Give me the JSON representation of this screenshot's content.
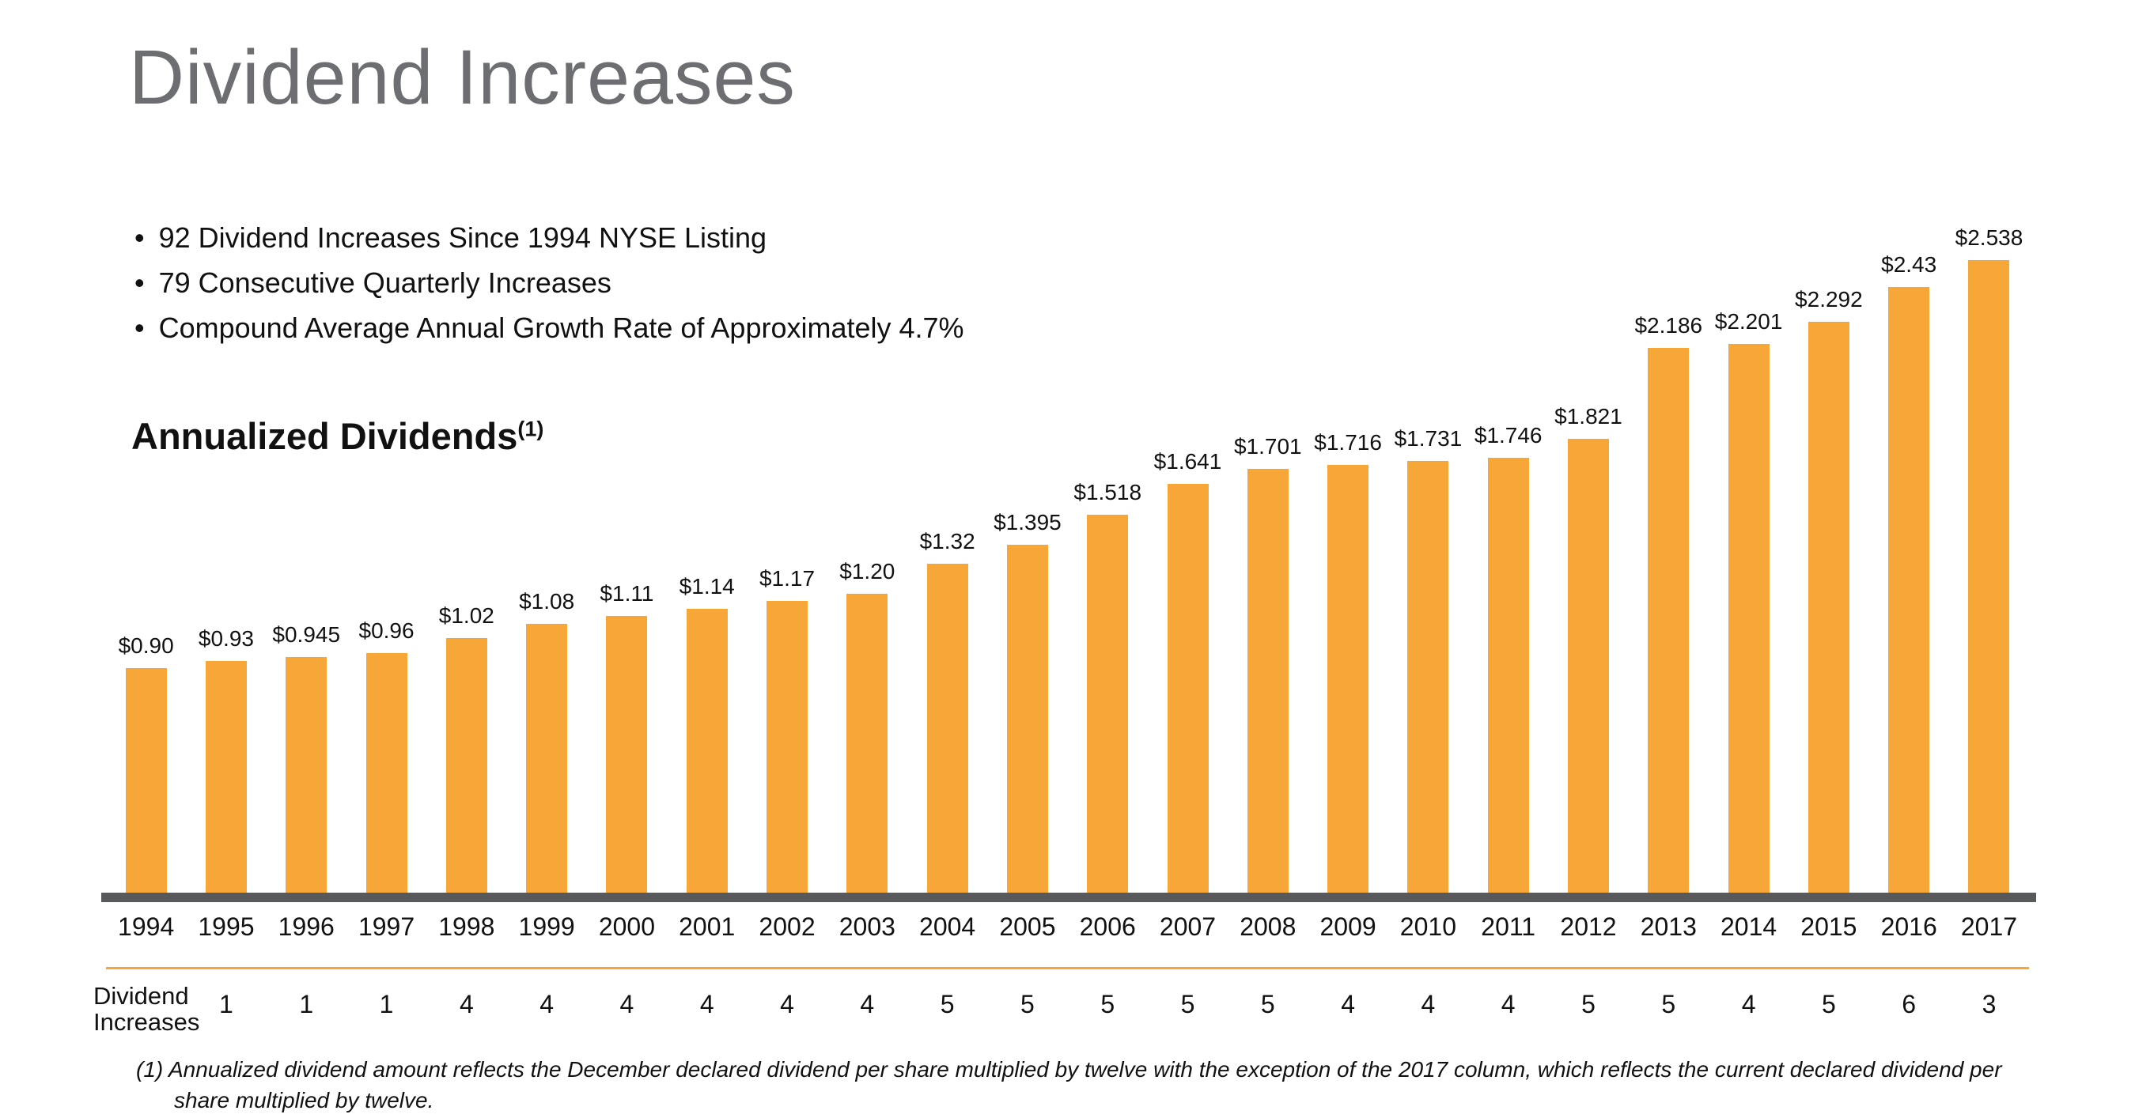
{
  "page": {
    "title": "Dividend Increases",
    "bullet_glyph": "•",
    "bullets": [
      "92 Dividend Increases Since 1994 NYSE Listing",
      "79 Consecutive Quarterly Increases",
      "Compound Average Annual Growth Rate of Approximately 4.7%"
    ],
    "section_heading": "Annualized Dividends",
    "section_heading_superscript": "(1)",
    "increases_row_label_line1": "Dividend",
    "increases_row_label_line2": "Increases",
    "footnote_marker": "(1)",
    "footnote_text": "Annualized dividend amount reflects the December declared dividend per share multiplied by twelve with the exception of the 2017 column, which reflects the current declared dividend per share multiplied by twelve."
  },
  "colors": {
    "bar": "#F7A738",
    "baseline": "#58595B",
    "divider": "#F7A738",
    "title": "#6D6E71"
  },
  "chart_data": {
    "type": "bar",
    "title": "Annualized Dividends (1)",
    "categories": [
      "1994",
      "1995",
      "1996",
      "1997",
      "1998",
      "1999",
      "2000",
      "2001",
      "2002",
      "2003",
      "2004",
      "2005",
      "2006",
      "2007",
      "2008",
      "2009",
      "2010",
      "2011",
      "2012",
      "2013",
      "2014",
      "2015",
      "2016",
      "2017"
    ],
    "values": [
      0.9,
      0.93,
      0.945,
      0.96,
      1.02,
      1.08,
      1.11,
      1.14,
      1.17,
      1.2,
      1.32,
      1.395,
      1.518,
      1.641,
      1.701,
      1.716,
      1.731,
      1.746,
      1.821,
      2.186,
      2.201,
      2.292,
      2.43,
      2.538
    ],
    "bar_labels": [
      "$0.90",
      "$0.93",
      "$0.945",
      "$0.96",
      "$1.02",
      "$1.08",
      "$1.11",
      "$1.14",
      "$1.17",
      "$1.20",
      "$1.32",
      "$1.395",
      "$1.518",
      "$1.641",
      "$1.701",
      "$1.716",
      "$1.731",
      "$1.746",
      "$1.821",
      "$2.186",
      "$2.201",
      "$2.292",
      "$2.43",
      "$2.538"
    ],
    "dividend_increases": [
      "",
      "1",
      "1",
      "1",
      "4",
      "4",
      "4",
      "4",
      "4",
      "4",
      "5",
      "5",
      "5",
      "5",
      "5",
      "4",
      "4",
      "4",
      "5",
      "5",
      "4",
      "5",
      "6",
      "3"
    ],
    "xlabel": "",
    "ylabel": "",
    "ylim": [
      0,
      2.6
    ],
    "grid": false,
    "legend": "none",
    "bar_color": "#F7A738"
  }
}
